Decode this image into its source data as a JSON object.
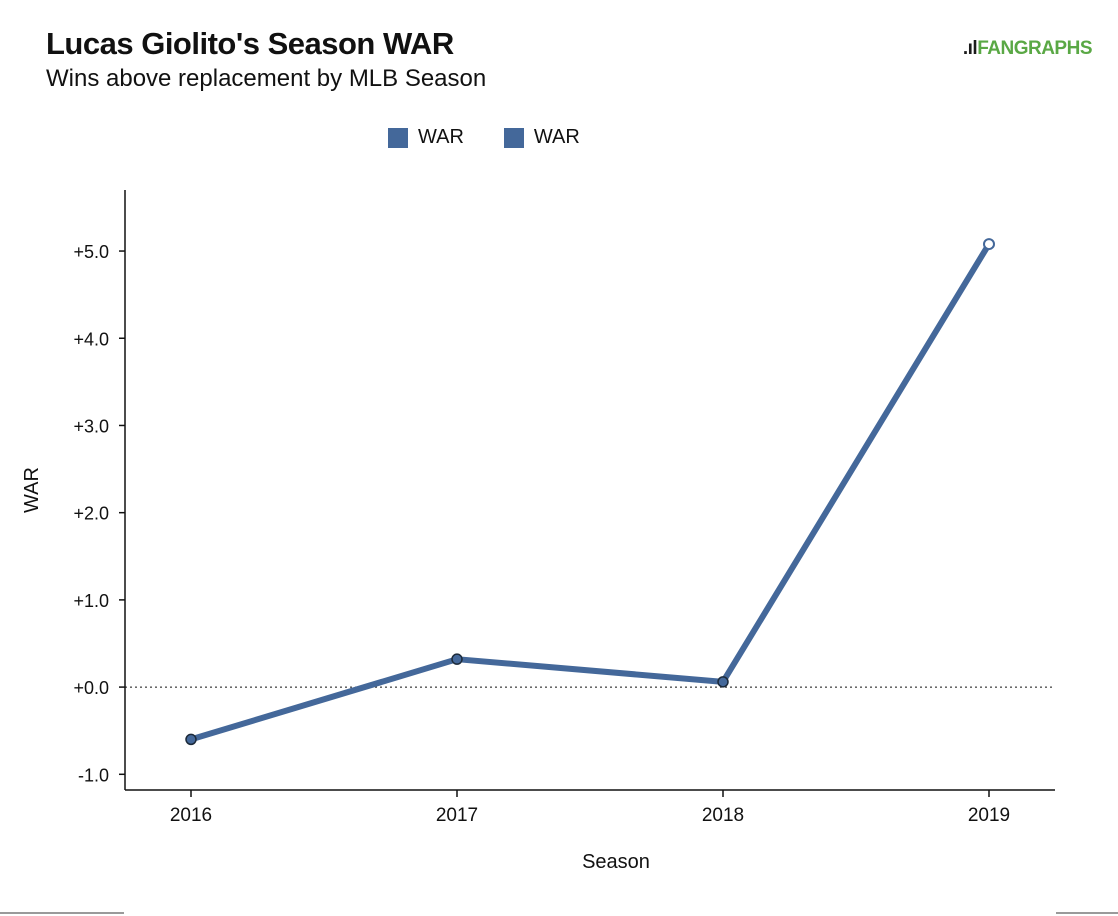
{
  "header": {
    "title": "Lucas Giolito's Season WAR",
    "subtitle": "Wins above replacement by MLB Season",
    "logo_text": "FANGRAPHS"
  },
  "legend": [
    {
      "label": "WAR",
      "color": "#44689a"
    },
    {
      "label": "WAR",
      "color": "#44689a"
    }
  ],
  "chart_data": {
    "type": "line",
    "title": "Lucas Giolito's Season WAR",
    "subtitle": "Wins above replacement by MLB Season",
    "xlabel": "Season",
    "ylabel": "WAR",
    "categories": [
      "2016",
      "2017",
      "2018",
      "2019"
    ],
    "series": [
      {
        "name": "WAR",
        "values": [
          -0.6,
          0.32,
          0.06,
          5.08
        ],
        "color": "#44689a"
      }
    ],
    "ylim": [
      -1.18,
      5.7
    ],
    "yticks": [
      -1.0,
      0.0,
      1.0,
      2.0,
      3.0,
      4.0,
      5.0
    ],
    "ytick_labels": [
      "-1.0",
      "+0.0",
      "+1.0",
      "+2.0",
      "+3.0",
      "+4.0",
      "+5.0"
    ],
    "zero_line": "dotted",
    "legend_position": "top-center",
    "grid": false
  }
}
